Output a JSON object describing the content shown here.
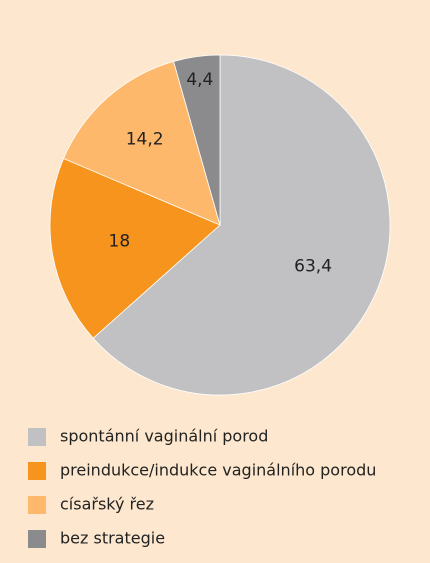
{
  "chart_data": {
    "type": "pie",
    "categories": [
      "spontánní vaginální porod",
      "preindukce/indukce vaginálního porodu",
      "císařský řez",
      "bez strategie"
    ],
    "values": [
      63.4,
      18,
      14.2,
      4.4
    ],
    "value_labels": [
      "63,4",
      "18",
      "14,2",
      "4,4"
    ],
    "colors": [
      "#c1c1c3",
      "#f7941d",
      "#fdb86c",
      "#8b8b8d"
    ]
  }
}
